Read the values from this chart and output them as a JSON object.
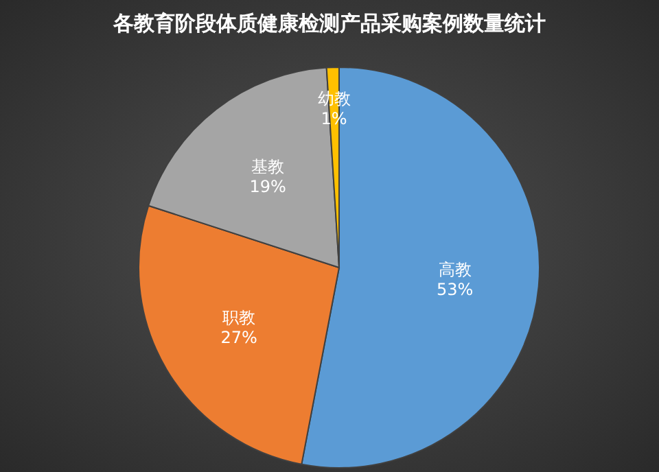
{
  "chart_data": {
    "type": "pie",
    "title": "各教育阶段体质健康检测产品采购案例数量统计",
    "categories": [
      "高教",
      "职教",
      "基教",
      "幼教"
    ],
    "values": [
      53,
      27,
      19,
      1
    ],
    "colors": [
      "#5b9bd5",
      "#ed7d31",
      "#a5a5a5",
      "#ffc000"
    ],
    "value_labels": [
      "53%",
      "27%",
      "19%",
      "1%"
    ]
  }
}
